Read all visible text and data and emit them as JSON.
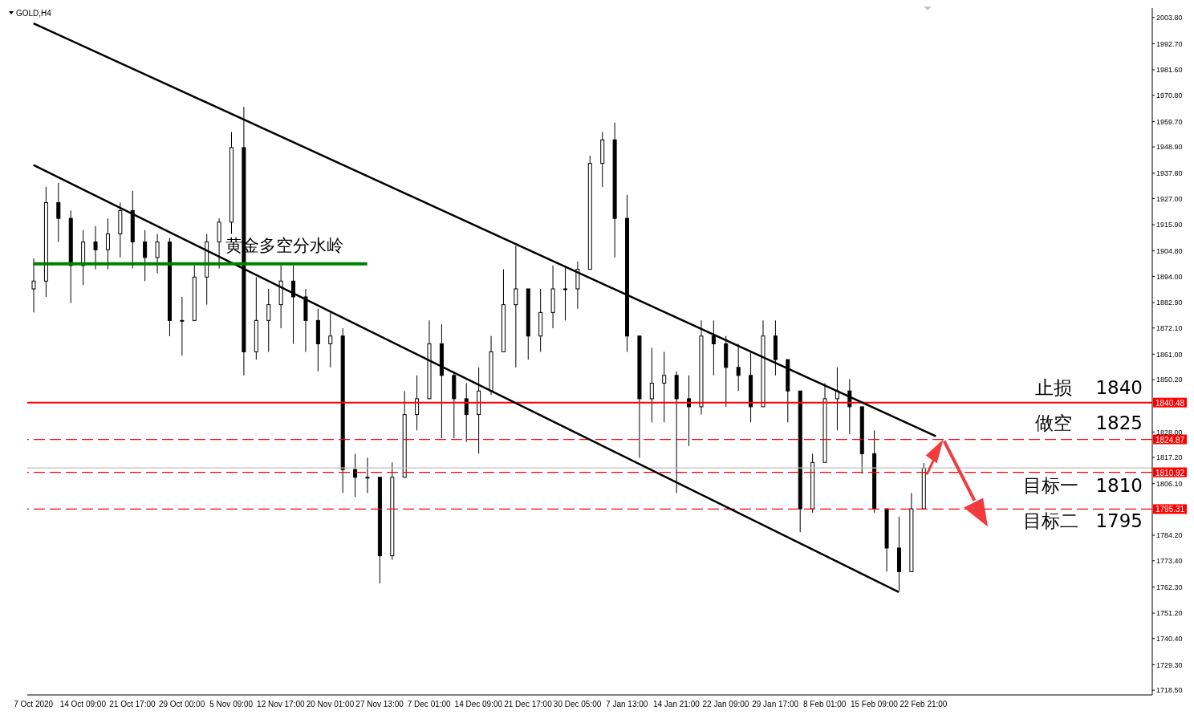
{
  "chart_data": {
    "type": "candlestick",
    "title": "GOLD,H4",
    "categories": [
      "7 Oct 2020",
      null,
      null,
      null,
      "14 Oct 09:00",
      null,
      null,
      null,
      "21 Oct 17:00",
      null,
      null,
      null,
      "29 Oct 00:00",
      null,
      null,
      null,
      "5 Nov 09:00",
      null,
      null,
      null,
      "12 Nov 17:00",
      null,
      null,
      null,
      "20 Nov 01:00",
      null,
      null,
      null,
      "27 Nov 13:00",
      null,
      null,
      null,
      "7 Dec 01:00",
      null,
      null,
      null,
      "14 Dec 09:00",
      null,
      null,
      null,
      "21 Dec 17:00",
      null,
      null,
      null,
      "30 Dec 05:00",
      null,
      null,
      null,
      "7 Jan 13:00",
      null,
      null,
      null,
      "14 Jan 21:00",
      null,
      null,
      null,
      "22 Jan 09:00",
      null,
      null,
      null,
      "29 Jan 17:00",
      null,
      null,
      null,
      "8 Feb 01:00",
      null,
      null,
      null,
      "15 Feb 09:00",
      null,
      null,
      null,
      "22 Feb 21:00",
      null,
      null,
      null,
      null,
      null,
      null,
      null,
      null,
      null,
      null,
      null,
      null,
      null,
      null,
      null,
      null,
      null,
      null
    ],
    "color": "#000000",
    "ohlc": [
      [
        1888.7,
        1901.6,
        1878.7,
        1892.0
      ],
      [
        1892.0,
        1931.9,
        1885.3,
        1925.3
      ],
      [
        1925.3,
        1933.6,
        1908.6,
        1918.6
      ],
      [
        1918.6,
        1921.9,
        1882.7,
        1898.6
      ],
      [
        1898.6,
        1913.6,
        1890.3,
        1908.6
      ],
      [
        1908.6,
        1915.3,
        1897.0,
        1905.3
      ],
      [
        1905.3,
        1918.6,
        1897.0,
        1912.0
      ],
      [
        1912.0,
        1925.3,
        1902.0,
        1921.9
      ],
      [
        1921.9,
        1930.3,
        1897.4,
        1908.6
      ],
      [
        1908.6,
        1913.6,
        1892.0,
        1902.0
      ],
      [
        1902.0,
        1912.0,
        1895.3,
        1908.6
      ],
      [
        1908.6,
        1910.3,
        1868.7,
        1875.3
      ],
      [
        1875.3,
        1885.3,
        1860.4,
        1875.3
      ],
      [
        1875.3,
        1898.6,
        1875.3,
        1893.7
      ],
      [
        1893.7,
        1912.0,
        1882.0,
        1908.6
      ],
      [
        1908.6,
        1918.6,
        1897.4,
        1917.0
      ],
      [
        1917.0,
        1955.2,
        1912.0,
        1948.6
      ],
      [
        1948.6,
        1965.9,
        1852.0,
        1862.0
      ],
      [
        1862.0,
        1893.7,
        1858.7,
        1875.3
      ],
      [
        1875.3,
        1888.7,
        1862.0,
        1882.0
      ],
      [
        1882.0,
        1898.6,
        1872.0,
        1892.0
      ],
      [
        1892.0,
        1898.6,
        1865.4,
        1885.3
      ],
      [
        1885.3,
        1888.7,
        1862.0,
        1875.3
      ],
      [
        1875.3,
        1880.3,
        1853.7,
        1865.4
      ],
      [
        1865.4,
        1878.7,
        1855.4,
        1868.7
      ],
      [
        1868.7,
        1872.0,
        1802.1,
        1812.1
      ],
      [
        1812.1,
        1818.8,
        1800.4,
        1808.8
      ],
      [
        1808.8,
        1817.1,
        1802.1,
        1808.8
      ],
      [
        1808.8,
        1808.8,
        1763.8,
        1775.5
      ],
      [
        1775.5,
        1815.1,
        1773.8,
        1808.8
      ],
      [
        1808.8,
        1845.4,
        1808.8,
        1835.4
      ],
      [
        1835.4,
        1852.0,
        1828.7,
        1842.1
      ],
      [
        1842.1,
        1875.3,
        1842.1,
        1865.4
      ],
      [
        1865.4,
        1873.7,
        1825.4,
        1852.0
      ],
      [
        1852.0,
        1853.7,
        1825.4,
        1842.1
      ],
      [
        1842.1,
        1848.7,
        1823.8,
        1835.4
      ],
      [
        1835.4,
        1855.4,
        1818.8,
        1845.4
      ],
      [
        1845.4,
        1868.7,
        1843.7,
        1862.0
      ],
      [
        1862.0,
        1897.0,
        1862.0,
        1882.0
      ],
      [
        1882.0,
        1907.0,
        1855.4,
        1888.7
      ],
      [
        1888.7,
        1888.7,
        1858.7,
        1868.7
      ],
      [
        1868.7,
        1888.7,
        1862.0,
        1878.7
      ],
      [
        1878.7,
        1898.6,
        1872.0,
        1888.7
      ],
      [
        1888.7,
        1898.6,
        1875.3,
        1888.7
      ],
      [
        1888.7,
        1900.3,
        1880.3,
        1897.0
      ],
      [
        1897.0,
        1945.2,
        1897.0,
        1941.9
      ],
      [
        1941.9,
        1955.2,
        1931.9,
        1951.9
      ],
      [
        1951.9,
        1959.2,
        1902.0,
        1918.6
      ],
      [
        1918.6,
        1928.6,
        1862.0,
        1868.7
      ],
      [
        1868.7,
        1868.7,
        1817.1,
        1842.1
      ],
      [
        1842.1,
        1863.7,
        1832.1,
        1848.7
      ],
      [
        1848.7,
        1862.0,
        1832.1,
        1852.0
      ],
      [
        1852.0,
        1853.7,
        1802.1,
        1842.1
      ],
      [
        1842.1,
        1852.0,
        1822.1,
        1838.7
      ],
      [
        1838.7,
        1875.3,
        1835.4,
        1868.7
      ],
      [
        1868.7,
        1875.3,
        1852.0,
        1865.4
      ],
      [
        1865.4,
        1868.7,
        1838.7,
        1855.4
      ],
      [
        1855.4,
        1865.4,
        1845.4,
        1852.0
      ],
      [
        1852.0,
        1862.0,
        1832.1,
        1838.7
      ],
      [
        1838.7,
        1875.3,
        1838.7,
        1868.7
      ],
      [
        1868.7,
        1875.3,
        1852.0,
        1858.7
      ],
      [
        1858.7,
        1858.7,
        1832.1,
        1845.4
      ],
      [
        1845.4,
        1845.4,
        1785.5,
        1795.4
      ],
      [
        1795.4,
        1818.8,
        1793.8,
        1815.1
      ],
      [
        1815.1,
        1848.7,
        1815.1,
        1842.1
      ],
      [
        1842.1,
        1855.4,
        1828.7,
        1845.4
      ],
      [
        1845.4,
        1850.4,
        1827.1,
        1838.7
      ],
      [
        1838.7,
        1838.7,
        1810.4,
        1818.8
      ],
      [
        1818.8,
        1828.7,
        1793.8,
        1795.4
      ],
      [
        1795.4,
        1795.4,
        1768.8,
        1778.8
      ],
      [
        1778.8,
        1792.1,
        1760.5,
        1768.8
      ],
      [
        1768.8,
        1802.1,
        1768.8,
        1795.4
      ],
      [
        1795.4,
        1814.8,
        1795.4,
        1812.7
      ],
      null,
      null,
      null,
      null,
      null,
      null,
      null,
      null,
      null,
      null,
      null,
      null,
      null,
      null,
      null,
      null,
      null,
      null
    ],
    "series": [
      {
        "type": "line",
        "color": "#000000",
        "values": [
          2001.3,
          null,
          null,
          null,
          null,
          null,
          null,
          null,
          null,
          null,
          null,
          null,
          null,
          null,
          null,
          null,
          null,
          null,
          null,
          null,
          null,
          null,
          null,
          null,
          null,
          null,
          null,
          null,
          null,
          null,
          null,
          null,
          null,
          null,
          null,
          null,
          null,
          null,
          null,
          null,
          null,
          null,
          null,
          null,
          null,
          null,
          null,
          null,
          null,
          null,
          null,
          null,
          null,
          null,
          null,
          null,
          null,
          null,
          null,
          null,
          null,
          null,
          null,
          null,
          null,
          null,
          null,
          null,
          null,
          null,
          null,
          null,
          null,
          1826.2,
          null,
          null,
          null,
          null,
          null,
          null,
          null,
          null,
          null,
          null,
          null,
          null,
          null,
          null,
          null,
          null,
          null
        ]
      },
      {
        "type": "line",
        "color": "#000000",
        "values": [
          1941.2,
          null,
          null,
          null,
          null,
          null,
          null,
          null,
          null,
          null,
          null,
          null,
          null,
          null,
          null,
          null,
          null,
          null,
          null,
          null,
          null,
          null,
          null,
          null,
          null,
          null,
          null,
          null,
          null,
          null,
          null,
          null,
          null,
          null,
          null,
          null,
          null,
          null,
          null,
          null,
          null,
          null,
          null,
          null,
          null,
          null,
          null,
          null,
          null,
          null,
          null,
          null,
          null,
          null,
          null,
          null,
          null,
          null,
          null,
          null,
          null,
          null,
          null,
          null,
          null,
          null,
          null,
          null,
          null,
          null,
          1760.1,
          null,
          null,
          null,
          null,
          null,
          null,
          null,
          null,
          null,
          null,
          null,
          null,
          null,
          null,
          null,
          null,
          null,
          null,
          null,
          null
        ]
      },
      {
        "type": "line",
        "name": "黄金多空分水岭",
        "color": "#008000",
        "values": [
          1899.3,
          null,
          null,
          null,
          null,
          null,
          null,
          null,
          null,
          null,
          null,
          null,
          null,
          null,
          null,
          null,
          null,
          null,
          null,
          null,
          null,
          null,
          null,
          null,
          null,
          null,
          null,
          1899.3,
          null,
          null,
          null,
          null,
          null,
          null,
          null,
          null,
          null,
          null,
          null,
          null,
          null,
          null,
          null,
          null,
          null,
          null,
          null,
          null,
          null,
          null,
          null,
          null,
          null,
          null,
          null,
          null,
          null,
          null,
          null,
          null,
          null,
          null,
          null,
          null,
          null,
          null,
          null,
          null,
          null,
          null,
          null,
          null,
          null,
          null,
          null,
          null,
          null,
          null,
          null,
          null,
          null,
          null,
          null,
          null,
          null,
          null,
          null,
          null,
          null,
          null,
          null
        ]
      }
    ],
    "ylim": [
      1716.5,
      2007.8
    ],
    "yticks": [
      {
        "value": 2003.8,
        "label": "2003.80"
      },
      {
        "value": 1992.7,
        "label": "1992.70"
      },
      {
        "value": 1981.6,
        "label": "1981.60"
      },
      {
        "value": 1970.8,
        "label": "1970.80"
      },
      {
        "value": 1959.7,
        "label": "1959.70"
      },
      {
        "value": 1948.9,
        "label": "1948.90"
      },
      {
        "value": 1937.8,
        "label": "1937.80"
      },
      {
        "value": 1927,
        "label": "1927.00"
      },
      {
        "value": 1915.9,
        "label": "1915.90"
      },
      {
        "value": 1904.8,
        "label": "1904.80"
      },
      {
        "value": 1894,
        "label": "1894.00"
      },
      {
        "value": 1882.9,
        "label": "1882.90"
      },
      {
        "value": 1872.1,
        "label": "1872.10"
      },
      {
        "value": 1861,
        "label": "1861.00"
      },
      {
        "value": 1850.2,
        "label": "1850.20"
      },
      {
        "value": 1828,
        "label": "1828.00"
      },
      {
        "value": 1817.2,
        "label": "1817.20"
      },
      {
        "value": 1806.1,
        "label": "1806.10"
      },
      {
        "value": 1784.2,
        "label": "1784.20"
      },
      {
        "value": 1773.4,
        "label": "1773.40"
      },
      {
        "value": 1762.3,
        "label": "1762.30"
      },
      {
        "value": 1751.2,
        "label": "1751.20"
      },
      {
        "value": 1740.4,
        "label": "1740.40"
      },
      {
        "value": 1729.3,
        "label": "1729.30"
      },
      {
        "value": 1718.5,
        "label": "1718.50"
      }
    ],
    "ref_lines": [
      {
        "axis": "y",
        "value": 1812.73,
        "label": null,
        "color": "#c0c0c0",
        "line_style": "solid"
      },
      {
        "axis": "y",
        "value": 1840.48,
        "label": "1840.48",
        "color": "#ff0000",
        "line_style": "solid"
      },
      {
        "axis": "y",
        "value": 1824.87,
        "label": "1824.87",
        "color": "#ff0000",
        "line_style": "dashed"
      },
      {
        "axis": "y",
        "value": 1810.92,
        "label": "1810.92",
        "color": "#ff0000",
        "line_style": "dashed"
      },
      {
        "axis": "y",
        "value": 1795.31,
        "label": "1795.31",
        "color": "#ff0000",
        "line_style": "dashed"
      }
    ],
    "annotations": [
      {
        "text": "止损    1840",
        "y": 1840
      },
      {
        "text": "做空    1825",
        "y": 1825
      },
      {
        "text": "目标一   1810",
        "y": 1810
      },
      {
        "text": "目标二   1795",
        "y": 1795
      }
    ],
    "legend": false,
    "grid": false,
    "marker": "none"
  }
}
